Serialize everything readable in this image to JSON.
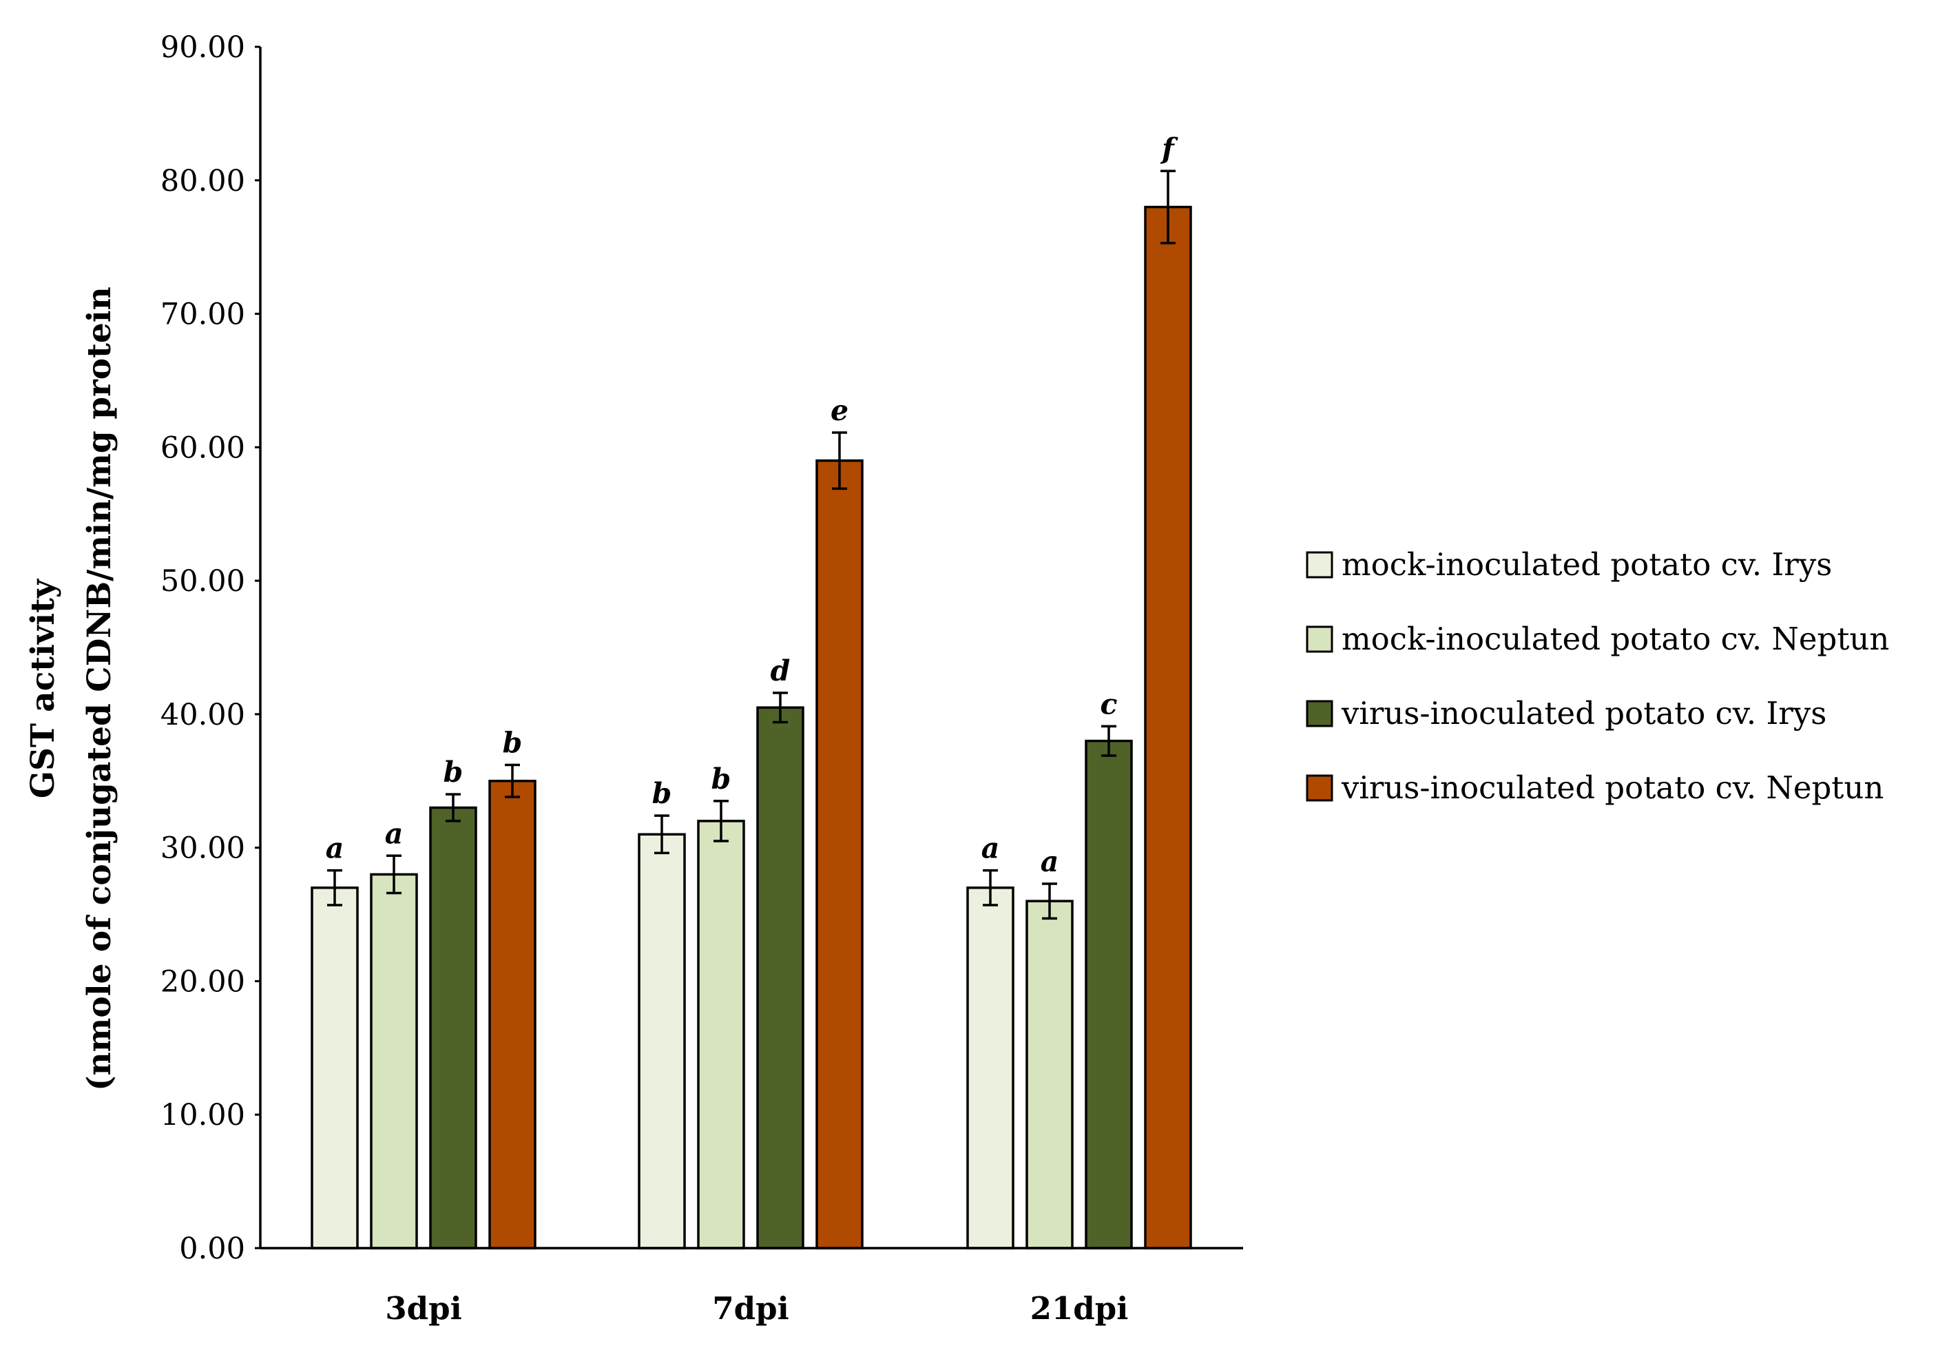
{
  "chart_data": {
    "type": "bar",
    "title": "",
    "ylabel_lines": [
      "GST activity",
      "(nmole of conjugated CDNB/min/mg protein"
    ],
    "xlabel": "",
    "categories": [
      "3dpi",
      "7dpi",
      "21dpi"
    ],
    "ylim": [
      0,
      90
    ],
    "yticks": [
      "0.00",
      "10.00",
      "20.00",
      "30.00",
      "40.00",
      "50.00",
      "60.00",
      "70.00",
      "80.00",
      "90.00"
    ],
    "ytick_values": [
      0,
      10,
      20,
      30,
      40,
      50,
      60,
      70,
      80,
      90
    ],
    "grid": false,
    "legend_position": "right",
    "series": [
      {
        "name": "mock-inoculated potato cv. Irys",
        "color": "#ebf1de",
        "values": [
          27,
          31,
          27
        ],
        "errors": [
          1.3,
          1.4,
          1.3
        ],
        "letters": [
          "a",
          "b",
          "a"
        ]
      },
      {
        "name": "mock-inoculated potato cv. Neptun",
        "color": "#d7e4bd",
        "values": [
          28,
          32,
          26
        ],
        "errors": [
          1.4,
          1.5,
          1.3
        ],
        "letters": [
          "a",
          "b",
          "a"
        ]
      },
      {
        "name": "virus-inoculated potato cv. Irys",
        "color": "#4f6228",
        "values": [
          33,
          40.5,
          38
        ],
        "errors": [
          1.0,
          1.1,
          1.1
        ],
        "letters": [
          "b",
          "d",
          "c"
        ]
      },
      {
        "name": "virus-inoculated potato cv. Neptun",
        "color": "#b04a00",
        "values": [
          35,
          59,
          78
        ],
        "errors": [
          1.2,
          2.1,
          2.7
        ],
        "letters": [
          "b",
          "e",
          "f"
        ]
      }
    ]
  }
}
